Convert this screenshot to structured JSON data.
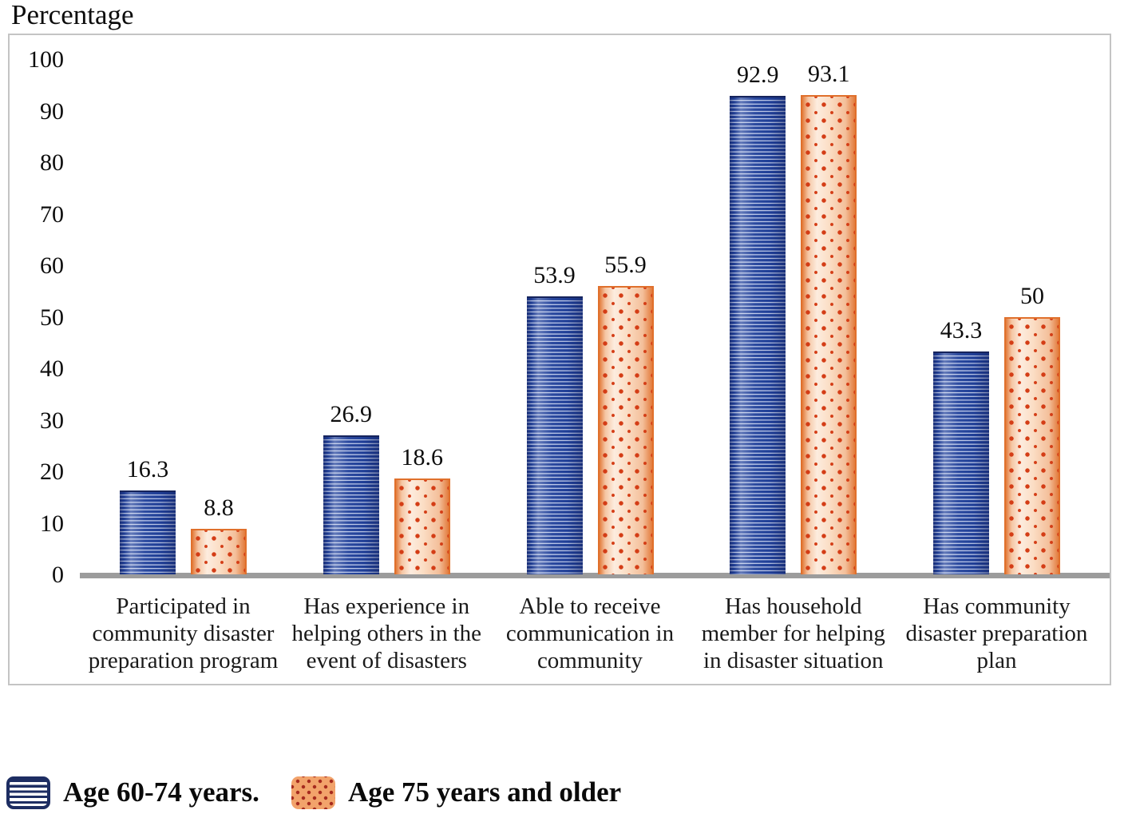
{
  "colors": {
    "blue_dark": "#20409a",
    "blue_mid": "#8fa3d8",
    "blue_light": "#e8edf9",
    "blue_cap": "#16245c",
    "orange_edge": "#e0702c",
    "orange_fill": "#fbddc4",
    "orange_dot": "#d43d16",
    "legend_navy": "#1d2d62",
    "legend_orange_fill": "#f2a36b",
    "legend_orange_dot": "#a62b1e",
    "axis_line": "#9c9c9c",
    "plot_border": "#c4c4c4",
    "text": "#0d0d0d"
  },
  "chart_data": {
    "type": "bar",
    "title": "Percentage",
    "xlabel": "",
    "ylabel": "Percentage",
    "ylim": [
      0,
      100
    ],
    "yticks": [
      0,
      10,
      20,
      30,
      40,
      50,
      60,
      70,
      80,
      90,
      100
    ],
    "grid": false,
    "legend_position": "bottom-left",
    "categories": [
      "Participated in community disaster preparation program",
      "Has experience in helping others in the event of disasters",
      "Able to receive communication in community",
      "Has household member for helping in disaster situation",
      "Has community disaster preparation plan"
    ],
    "category_lines": [
      [
        "Participated in",
        "community disaster",
        "preparation program"
      ],
      [
        "Has experience in",
        "helping others in the",
        "event of disasters"
      ],
      [
        "Able to receive",
        "communication in",
        "community"
      ],
      [
        "Has household",
        "member for helping",
        "in disaster situation"
      ],
      [
        "Has community",
        "disaster preparation",
        "plan"
      ]
    ],
    "series": [
      {
        "name": "Age 60-74 years.",
        "pattern": "horizontal-stripes",
        "color": "#20409a",
        "values": [
          16.3,
          26.9,
          53.9,
          92.9,
          43.3
        ],
        "labels": [
          "16.3",
          "26.9",
          "53.9",
          "92.9",
          "43.3"
        ]
      },
      {
        "name": "Age 75 years and older",
        "pattern": "dots",
        "color": "#e0702c",
        "values": [
          8.8,
          18.6,
          55.9,
          93.1,
          50
        ],
        "labels": [
          "8.8",
          "18.6",
          "55.9",
          "93.1",
          "50"
        ]
      }
    ]
  }
}
